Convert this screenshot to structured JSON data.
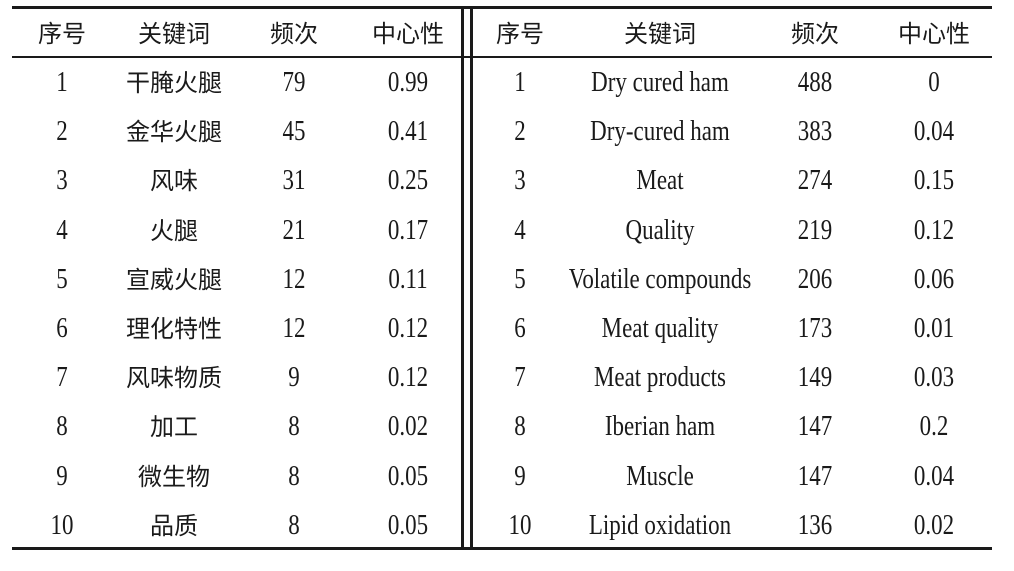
{
  "left_table": {
    "headers": [
      "序号",
      "关键词",
      "频次",
      "中心性"
    ],
    "rows": [
      [
        "1",
        "干腌火腿",
        "79",
        "0.99"
      ],
      [
        "2",
        "金华火腿",
        "45",
        "0.41"
      ],
      [
        "3",
        "风味",
        "31",
        "0.25"
      ],
      [
        "4",
        "火腿",
        "21",
        "0.17"
      ],
      [
        "5",
        "宣威火腿",
        "12",
        "0.11"
      ],
      [
        "6",
        "理化特性",
        "12",
        "0.12"
      ],
      [
        "7",
        "风味物质",
        "9",
        "0.12"
      ],
      [
        "8",
        "加工",
        "8",
        "0.02"
      ],
      [
        "9",
        "微生物",
        "8",
        "0.05"
      ],
      [
        "10",
        "品质",
        "8",
        "0.05"
      ]
    ]
  },
  "right_table": {
    "headers": [
      "序号",
      "关键词",
      "频次",
      "中心性"
    ],
    "rows": [
      [
        "1",
        "Dry cured ham",
        "488",
        "0"
      ],
      [
        "2",
        "Dry-cured ham",
        "383",
        "0.04"
      ],
      [
        "3",
        "Meat",
        "274",
        "0.15"
      ],
      [
        "4",
        "Quality",
        "219",
        "0.12"
      ],
      [
        "5",
        "Volatile compounds",
        "206",
        "0.06"
      ],
      [
        "6",
        "Meat quality",
        "173",
        "0.01"
      ],
      [
        "7",
        "Meat products",
        "149",
        "0.03"
      ],
      [
        "8",
        "Iberian ham",
        "147",
        "0.2"
      ],
      [
        "9",
        "Muscle",
        "147",
        "0.04"
      ],
      [
        "10",
        "Lipid oxidation",
        "136",
        "0.02"
      ]
    ]
  }
}
